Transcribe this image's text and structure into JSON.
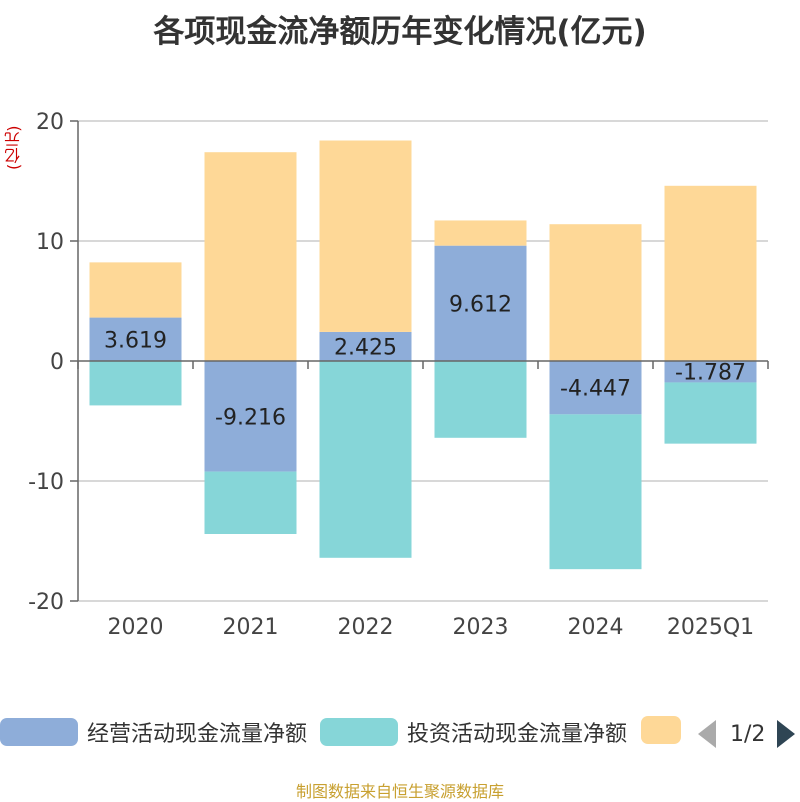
{
  "chart_data": {
    "type": "bar",
    "stacked": true,
    "title": "各项现金流净额历年变化情况(亿元)",
    "ylabel": "(亿元)",
    "ylim": [
      -20,
      20
    ],
    "yticks": [
      20,
      10,
      0,
      -10,
      -20
    ],
    "categories": [
      "2020",
      "2021",
      "2022",
      "2023",
      "2024",
      "2025Q1"
    ],
    "series": [
      {
        "name": "经营活动现金流量净额",
        "color": "#8eadd9",
        "values": [
          3.619,
          -9.216,
          2.425,
          9.612,
          -4.447,
          -1.787
        ],
        "labels": [
          "3.619",
          "-9.216",
          "2.425",
          "9.612",
          "-4.447",
          "-1.787"
        ]
      },
      {
        "name": "投资活动现金流量净额",
        "color": "#86d6d8",
        "values": [
          -3.7,
          -5.2,
          -16.4,
          -6.4,
          -12.9,
          -5.1
        ]
      },
      {
        "name": "",
        "color": "#fed897",
        "values": [
          4.6,
          17.4,
          15.95,
          2.1,
          11.4,
          14.6
        ]
      }
    ],
    "legend_position": "bottom",
    "grid": true
  },
  "legend": {
    "items": [
      {
        "label": "经营活动现金流量净额",
        "color": "#8eadd9"
      },
      {
        "label": "投资活动现金流量净额",
        "color": "#86d6d8"
      },
      {
        "label": "",
        "color": "#fed897"
      }
    ],
    "page": "1/2"
  },
  "source": "制图数据来自恒生聚源数据库"
}
